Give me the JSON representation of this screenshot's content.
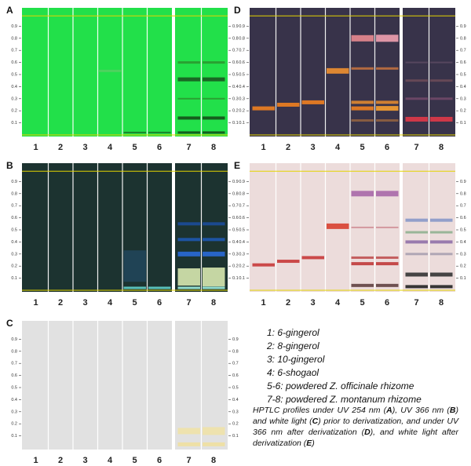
{
  "panels": [
    {
      "letter": "A"
    },
    {
      "letter": "B"
    },
    {
      "letter": "C"
    },
    {
      "letter": "D"
    },
    {
      "letter": "E"
    }
  ],
  "lane_labels": [
    "1",
    "2",
    "3",
    "4",
    "5",
    "6",
    "7",
    "8"
  ],
  "rf_ticks": [
    "0.1",
    "0.2",
    "0.3",
    "0.4",
    "0.5",
    "0.6",
    "0.7",
    "0.8",
    "0.9"
  ],
  "legend": [
    "1: 6-gingerol",
    "2: 8-gingerol",
    "3: 10-gingerol",
    "4: 6-shogaol",
    "5-6: powdered Z. officinale rhizome",
    "7-8: powdered Z. montanum rhizome"
  ],
  "caption": [
    "HPTLC profiles under UV 254 nm (",
    "A",
    "), UV 366 nm (",
    "B",
    ") and white light (",
    "C",
    ") prior to derivatization, and under UV 366 nm after derivatization (",
    "D",
    "), and white light after derivatization (",
    "E",
    ")"
  ]
}
